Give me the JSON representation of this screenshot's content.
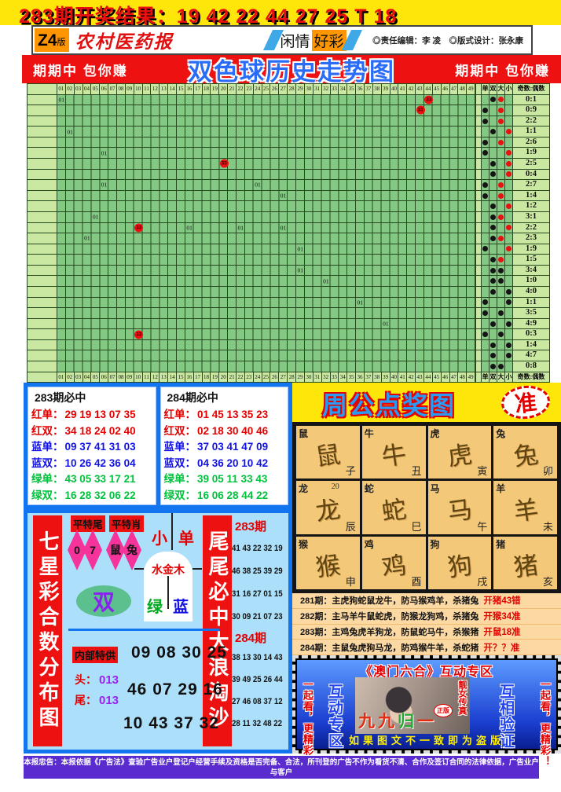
{
  "colors": {
    "accent_red": "#ee1111",
    "accent_blue": "#1374f0",
    "yellow": "#ffe60a",
    "grid_green": "#83c883",
    "grid_light": "#cbe8a2",
    "panel_blue": "#ace0fa",
    "zodiac_tan": "#f3c879",
    "purple": "#5a2bcf"
  },
  "top": {
    "result_line": "283期开奖结果：19 42 22 44 27 25 T 18"
  },
  "masthead": {
    "edition_big": "Z4",
    "edition_small": "版",
    "paper": "农村医药报",
    "section_left": "闲情",
    "section_right": "好彩",
    "credits": "◎责任编辑：李 凌　◎版式设计：张永康"
  },
  "banner": {
    "left": "期期中 包你赚",
    "title": "双色球历史走势图",
    "right": "期期中 包你赚"
  },
  "chart_data": {
    "type": "table",
    "title": "双色球历史走势图",
    "columns": [
      "01",
      "02",
      "03",
      "04",
      "05",
      "06",
      "07",
      "08",
      "09",
      "10",
      "11",
      "12",
      "13",
      "14",
      "15",
      "16",
      "17",
      "18",
      "19",
      "20",
      "21",
      "22",
      "23",
      "24",
      "25",
      "26",
      "27",
      "28",
      "29",
      "30",
      "31",
      "32",
      "33",
      "34",
      "35",
      "36",
      "37",
      "38",
      "39",
      "40",
      "41",
      "42",
      "43",
      "44",
      "45",
      "46",
      "47",
      "48",
      "49"
    ],
    "right_headers": [
      "单",
      "双",
      "大",
      "小",
      "奇数:偶数"
    ],
    "rows": [
      {
        "markers": [
          {
            "c": 1,
            "t": "01"
          },
          {
            "c": 44,
            "t": "33",
            "red": true
          }
        ],
        "odd_even": "双",
        "size": "大",
        "size_dot": "red",
        "ratio": "0:1"
      },
      {
        "markers": [
          {
            "c": 43,
            "t": "33",
            "red": true
          }
        ],
        "odd_even": "单",
        "size": "大",
        "size_dot": "red",
        "ratio": "0:9"
      },
      {
        "markers": [],
        "odd_even": "单",
        "size": "大",
        "size_dot": "red",
        "ratio": "2:2"
      },
      {
        "markers": [
          {
            "c": 2,
            "t": "01"
          }
        ],
        "odd_even": "双",
        "size": "小",
        "size_dot": "red",
        "ratio": "1:1"
      },
      {
        "markers": [],
        "odd_even": "单",
        "size": "大",
        "size_dot": "red",
        "ratio": "2:6"
      },
      {
        "markers": [
          {
            "c": 6,
            "t": "01"
          }
        ],
        "odd_even": "单",
        "size": "小",
        "size_dot": "red",
        "ratio": "1:9"
      },
      {
        "markers": [
          {
            "c": 20,
            "t": "33",
            "red": true
          }
        ],
        "odd_even": "双",
        "size": "小",
        "size_dot": "red",
        "ratio": "2:5"
      },
      {
        "markers": [],
        "odd_even": "双",
        "size": "小",
        "size_dot": "red",
        "ratio": "0:4"
      },
      {
        "markers": [
          {
            "c": 6,
            "t": "01"
          },
          {
            "c": 24,
            "t": "01"
          }
        ],
        "odd_even": "单",
        "size": "大",
        "size_dot": "red",
        "ratio": "2:7"
      },
      {
        "markers": [
          {
            "c": 27,
            "t": "01"
          }
        ],
        "odd_even": "单",
        "size": "大",
        "size_dot": "red",
        "ratio": "1:4"
      },
      {
        "markers": [],
        "odd_even": "双",
        "size": "小",
        "size_dot": "red",
        "ratio": "1:2"
      },
      {
        "markers": [
          {
            "c": 5,
            "t": "01"
          }
        ],
        "odd_even": "双",
        "size": "大",
        "size_dot": "red",
        "ratio": "3:1"
      },
      {
        "markers": [
          {
            "c": 10,
            "t": "33",
            "red": true
          },
          {
            "c": 16,
            "t": "01"
          },
          {
            "c": 22,
            "t": "01"
          },
          {
            "c": 27,
            "t": "01"
          }
        ],
        "odd_even": "双",
        "size": "小",
        "size_dot": "red",
        "ratio": "2:2"
      },
      {
        "markers": [
          {
            "c": 4,
            "t": "01"
          }
        ],
        "odd_even": "双",
        "size": "大",
        "size_dot": "red",
        "ratio": "2:3"
      },
      {
        "markers": [
          {
            "c": 29,
            "t": "01"
          }
        ],
        "odd_even": "单",
        "size": "小",
        "size_dot": "red",
        "ratio": "1:9"
      },
      {
        "markers": [],
        "odd_even": "双",
        "size": "大",
        "size_dot": "red",
        "ratio": "1:5"
      },
      {
        "markers": [
          {
            "c": 29,
            "t": "01"
          }
        ],
        "odd_even": "双",
        "size": "大",
        "size_dot": "black",
        "ratio": "3:4"
      },
      {
        "markers": [
          {
            "c": 32,
            "t": "01"
          }
        ],
        "odd_even": "双",
        "size": "大",
        "size_dot": "black",
        "ratio": "1:0"
      },
      {
        "markers": [],
        "odd_even": "双",
        "size": "小",
        "size_dot": "black",
        "ratio": "4:0"
      },
      {
        "markers": [
          {
            "c": 36,
            "t": "01"
          }
        ],
        "odd_even": "单",
        "size": "小",
        "size_dot": "black",
        "ratio": "1:1"
      },
      {
        "markers": [],
        "odd_even": "单",
        "size": "大",
        "size_dot": "black",
        "ratio": "3:5"
      },
      {
        "markers": [
          {
            "c": 39,
            "t": "01"
          }
        ],
        "odd_even": "双",
        "size": "小",
        "size_dot": "black",
        "ratio": "4:9"
      },
      {
        "markers": [
          {
            "c": 10,
            "t": "33",
            "red": true
          }
        ],
        "odd_even": "单",
        "size": "大",
        "size_dot": "black",
        "ratio": "0:3"
      },
      {
        "markers": [],
        "odd_even": "双",
        "size": "小",
        "size_dot": "black",
        "ratio": "1:4"
      },
      {
        "markers": [],
        "odd_even": "双",
        "size": "小",
        "size_dot": "black",
        "ratio": "4:7"
      },
      {
        "markers": [],
        "odd_even": "双",
        "size": "大",
        "size_dot": "black",
        "ratio": "0:8"
      }
    ]
  },
  "bet_boxes": [
    {
      "title": "283期必中",
      "rows": [
        {
          "label": "红单：",
          "nums": "29 19 13 07 35",
          "color": "red"
        },
        {
          "label": "红双：",
          "nums": "34 18 24 02 40",
          "color": "red"
        },
        {
          "label": "蓝单：",
          "nums": "09 37 41 31 03",
          "color": "blue"
        },
        {
          "label": "蓝双：",
          "nums": "10 26 42 36 04",
          "color": "blue"
        },
        {
          "label": "绿单：",
          "nums": "43 05 33 17 21",
          "color": "green"
        },
        {
          "label": "绿双：",
          "nums": "16 28 32 06 22",
          "color": "green"
        }
      ]
    },
    {
      "title": "284期必中",
      "rows": [
        {
          "label": "红单：",
          "nums": "01 45 13 35 23",
          "color": "red"
        },
        {
          "label": "红双：",
          "nums": "02 18 30 40 46",
          "color": "red"
        },
        {
          "label": "蓝单：",
          "nums": "37 03 41 47 09",
          "color": "blue"
        },
        {
          "label": "蓝双：",
          "nums": "04 36 20 10 42",
          "color": "blue"
        },
        {
          "label": "绿单：",
          "nums": "39 05 11 33 43",
          "color": "green"
        },
        {
          "label": "绿双：",
          "nums": "16 06 28 44 22",
          "color": "green"
        }
      ]
    }
  ],
  "zhougong": {
    "title": "周公点奖图",
    "badge": "准",
    "cells": [
      {
        "animal": "鼠",
        "branch": "子"
      },
      {
        "animal": "牛",
        "branch": "丑"
      },
      {
        "animal": "虎",
        "branch": "寅"
      },
      {
        "animal": "兔",
        "branch": "卯"
      },
      {
        "animal": "龙",
        "branch": "辰",
        "extra": "20"
      },
      {
        "animal": "蛇",
        "branch": "巳"
      },
      {
        "animal": "马",
        "branch": "午"
      },
      {
        "animal": "羊",
        "branch": "未"
      },
      {
        "animal": "猴",
        "branch": "申"
      },
      {
        "animal": "鸡",
        "branch": "酉"
      },
      {
        "animal": "狗",
        "branch": "戌"
      },
      {
        "animal": "猪",
        "branch": "亥"
      }
    ]
  },
  "periods": [
    {
      "label": "281期：主虎狗蛇鼠龙牛，防马猴鸡羊，杀猪兔",
      "result": "开猪43错"
    },
    {
      "label": "282期：主马羊牛鼠蛇虎，防猴龙狗鸡，杀猪兔",
      "result": "开猴34准"
    },
    {
      "label": "283期：主鸡兔虎羊狗龙，防鼠蛇马牛，杀猴猪",
      "result": "开鼠18准"
    },
    {
      "label": "284期：主鼠兔虎狗马龙，防鸡猴牛羊，杀蛇猪",
      "result": "开？？准"
    }
  ],
  "macau": {
    "title": "《澳门六合》互动专区",
    "left1": "一起看，更精彩！",
    "left2": "互动专区",
    "overlay": {
      "chars": [
        "九",
        "九",
        "归",
        "一"
      ],
      "colors": [
        "#e32b11",
        "#e32b11",
        "#22aa33",
        "#e32b11"
      ]
    },
    "photo_caption": "靓女传真",
    "stamp": "正版",
    "right1": "互相验证",
    "right2": "一起看，更精彩！",
    "bottom": "如果图文不一致即为盗版"
  },
  "left_panel": {
    "bar_left": "七星彩合数分布图",
    "bar_right": "尾尾必中大浪淘沙",
    "tag1": "平特尾",
    "tag2": "平特肖",
    "diamonds": [
      "0",
      "7",
      "鼠",
      "兔"
    ],
    "xiao": "小",
    "dan": "单",
    "wujinmu": "水金木",
    "lv": "绿",
    "lan": "蓝",
    "shuang": "双",
    "neibu": "内部特供",
    "nums1": "09 08 30 25",
    "tou": "头：",
    "tou_val": "013",
    "wei": "尾：",
    "wei_val": "013",
    "nums2": "46 07 29 16",
    "nums3": "10 43 37 32",
    "right_col": {
      "p1": "283期",
      "rows1": [
        "41 43 22 32 19",
        "46 38 25 39 29",
        "31 16 27 01 15",
        "30 09 21 07 23"
      ],
      "p2": "284期",
      "rows2": [
        "38 13 30 14 43",
        "39 49 25 26 44",
        "27 46 08 37 12",
        "28 11 32 48 22"
      ]
    }
  },
  "disclaimer": {
    "line1": "本报忠告：本报依据《广告法》查验广告业户登记户经营手续及资格是否完备、合法，所刊登的广告不作为看货不清、合作及签订合同的法律依据，广告业户与客户",
    "line2": "之间商谈的内容未经本报社核实，本报不负责广告业户与客户之间的纠纷，敬请广大读者与相关单位合作时，注意保护自身利益，本报不承担因此产生的责任118003.com"
  }
}
